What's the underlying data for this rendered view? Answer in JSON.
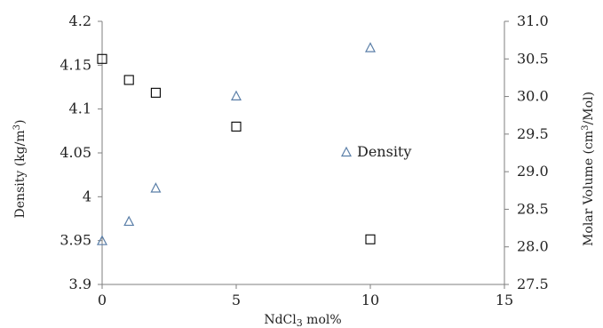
{
  "chart_data": {
    "type": "scatter",
    "xlabel_main": "NdCl",
    "xlabel_sub": "3",
    "xlabel_tail": "  mol%",
    "ylabel_left_main": "Density (kg/m",
    "ylabel_left_sup": "3",
    "ylabel_left_tail": ")",
    "ylabel_right_main": "Molar Volume (cm",
    "ylabel_right_sup": "3",
    "ylabel_right_tail": "/Mol)",
    "xlim": [
      0,
      15
    ],
    "ylim_left": [
      3.9,
      4.2
    ],
    "ylim_right": [
      27.5,
      31.0
    ],
    "x_ticks": [
      "0",
      "5",
      "10",
      "15"
    ],
    "y_left_ticks": [
      "3.9",
      "3.95",
      "4",
      "4.05",
      "4.1",
      "4.15",
      "4.2"
    ],
    "y_right_ticks": [
      "27.5",
      "28.0",
      "28.5",
      "29.0",
      "29.5",
      "30.0",
      "30.5",
      "31.0"
    ],
    "legend_position": "right",
    "series": [
      {
        "name": "Density",
        "axis": "left",
        "marker": "triangle",
        "color": "#5b7fa8",
        "x": [
          0,
          1,
          2,
          5,
          10
        ],
        "y": [
          3.95,
          3.972,
          4.01,
          4.115,
          4.17
        ]
      },
      {
        "axis": "right",
        "marker": "square",
        "color": "#000000",
        "x": [
          0,
          1,
          2,
          5,
          10
        ],
        "y": [
          30.5,
          30.22,
          30.05,
          29.6,
          28.1
        ]
      }
    ]
  }
}
